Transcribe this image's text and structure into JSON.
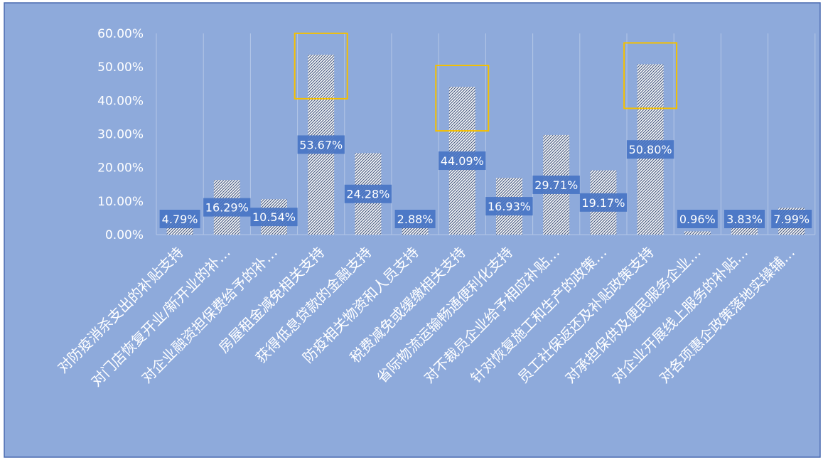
{
  "chart_data": {
    "type": "bar",
    "categories": [
      "对防疫消杀支出的补贴支持",
      "对门店恢复开业/新开业的补…",
      "对企业融资担保费给予的补…",
      "房屋租金减免相关支持",
      "获得低息贷款的金融支持",
      "防疫相关物资和人员支持",
      "税费减免或缓缴相关支持",
      "省际物流运输畅通便利化支持",
      "对不裁员企业给予相应补贴…",
      "针对恢复施工和生产的政策…",
      "员工社保返还及补贴政策支持",
      "对承担保供及便民服务企业…",
      "对企业开展线上服务的补贴…",
      "对各项惠企政策落地实操辅…"
    ],
    "values": [
      4.79,
      16.29,
      10.54,
      53.67,
      24.28,
      2.88,
      44.09,
      16.93,
      29.71,
      19.17,
      50.8,
      0.96,
      3.83,
      7.99
    ],
    "data_labels": [
      "4.79%",
      "16.29%",
      "10.54%",
      "53.67%",
      "24.28%",
      "2.88%",
      "44.09%",
      "16.93%",
      "29.71%",
      "19.17%",
      "50.80%",
      "0.96%",
      "3.83%",
      "7.99%"
    ],
    "y_ticks": [
      "0.00%",
      "10.00%",
      "20.00%",
      "30.00%",
      "40.00%",
      "50.00%",
      "60.00%"
    ],
    "ylim": [
      0,
      60
    ],
    "grid": "vertical",
    "highlighted": [
      "房屋租金减免相关支持",
      "税费减免或缓缴相关支持",
      "员工社保返还及补贴政策支持"
    ],
    "title": "",
    "xlabel": "",
    "ylabel": "",
    "colors": {
      "background": "#8eaadb",
      "bar_fill": "#ffffff",
      "bar_hatch": "#4d5f85",
      "label_box": "#4472c4",
      "highlight_box": "#f5c000",
      "grid": "#b4c7e7"
    }
  }
}
